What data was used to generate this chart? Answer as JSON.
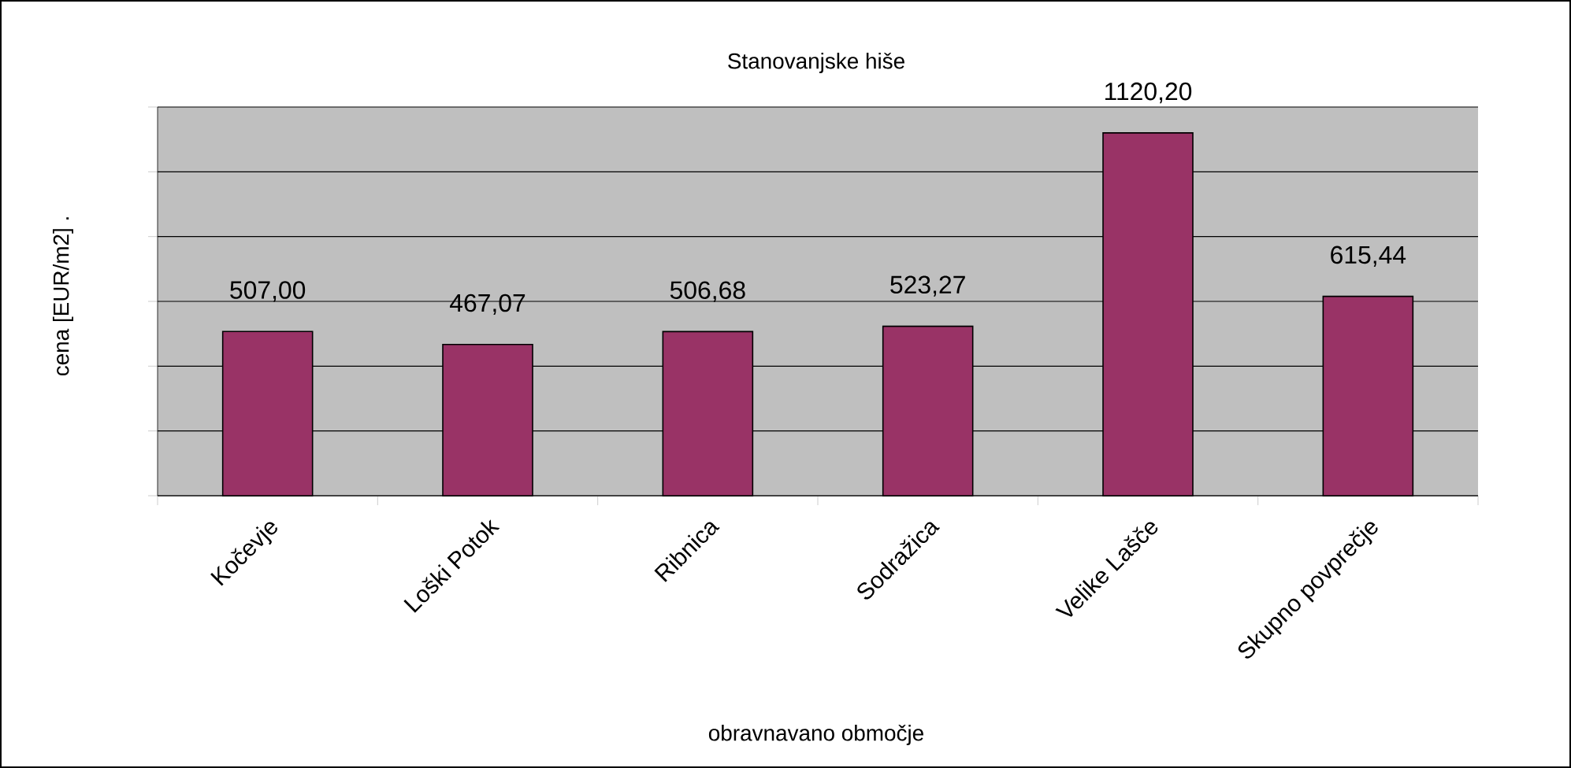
{
  "chart_data": {
    "type": "bar",
    "title": "Stanovanjske hiše",
    "xlabel": "obravnavano območje",
    "ylabel": "cena [EUR/m2]        .",
    "categories": [
      "Kočevje",
      "Loški Potok",
      "Ribnica",
      "Sodražica",
      "Velike Lašče",
      "Skupno povprečje"
    ],
    "values": [
      507.0,
      467.07,
      506.68,
      523.27,
      1120.2,
      615.44
    ],
    "value_labels": [
      "507,00",
      "467,07",
      "506,68",
      "523,27",
      "1120,20",
      "615,44"
    ],
    "color": "#993366",
    "ylim": [
      0,
      1200
    ],
    "yticks": [
      {
        "value": 0,
        "label": null
      },
      {
        "value": 200,
        "label": null
      },
      {
        "value": 400,
        "label": null
      },
      {
        "value": 600,
        "label": null
      },
      {
        "value": 800,
        "label": null
      },
      {
        "value": 1000,
        "label": null
      },
      {
        "value": 1200,
        "label": null
      }
    ],
    "tick_labels": "x",
    "grid": "y"
  }
}
